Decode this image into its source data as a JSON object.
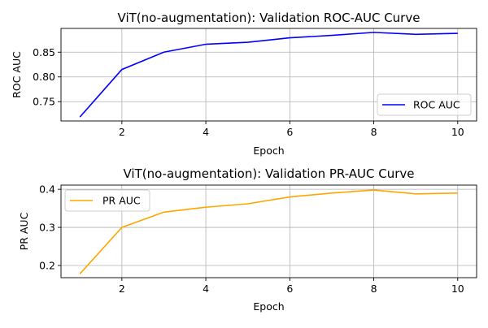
{
  "chart_data": [
    {
      "type": "line",
      "title": "ViT(no-augmentation): Validation ROC-AUC Curve",
      "xlabel": "Epoch",
      "ylabel": "ROC AUC",
      "x": [
        1,
        2,
        3,
        4,
        5,
        6,
        7,
        8,
        9,
        10
      ],
      "xlim": [
        0.55,
        10.45
      ],
      "ylim": [
        0.711,
        0.898
      ],
      "xticks": [
        2,
        4,
        6,
        8,
        10
      ],
      "yticks": [
        0.75,
        0.8,
        0.85
      ],
      "ytick_labels": [
        "0.75",
        "0.80",
        "0.85"
      ],
      "grid": true,
      "legend_position": "lower-right",
      "series": [
        {
          "name": "ROC AUC",
          "color": "#0000ff",
          "values": [
            0.719,
            0.815,
            0.85,
            0.866,
            0.87,
            0.879,
            0.884,
            0.89,
            0.886,
            0.888
          ]
        }
      ]
    },
    {
      "type": "line",
      "title": "ViT(no-augmentation): Validation PR-AUC Curve",
      "xlabel": "Epoch",
      "ylabel": "PR AUC",
      "x": [
        1,
        2,
        3,
        4,
        5,
        6,
        7,
        8,
        9,
        10
      ],
      "xlim": [
        0.55,
        10.45
      ],
      "ylim": [
        0.168,
        0.411
      ],
      "xticks": [
        2,
        4,
        6,
        8,
        10
      ],
      "yticks": [
        0.2,
        0.3,
        0.4
      ],
      "ytick_labels": [
        "0.2",
        "0.3",
        "0.4"
      ],
      "grid": true,
      "legend_position": "upper-left",
      "series": [
        {
          "name": "PR AUC",
          "color": "#ffa500",
          "values": [
            0.178,
            0.3,
            0.34,
            0.353,
            0.362,
            0.38,
            0.39,
            0.398,
            0.388,
            0.39
          ]
        }
      ]
    }
  ]
}
